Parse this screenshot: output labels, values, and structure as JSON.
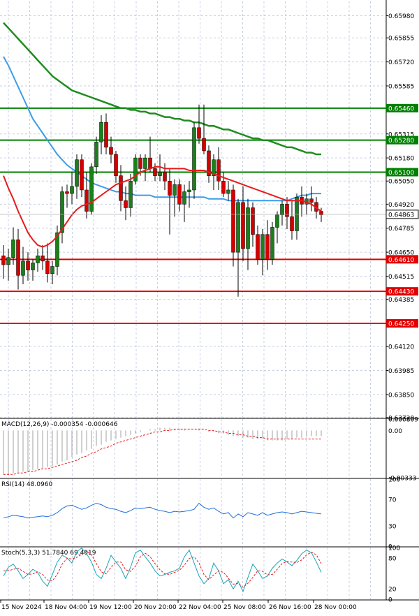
{
  "chart_data": {
    "type": "candlestick",
    "price_axis": {
      "ticks": [
        "0.65980",
        "0.65855",
        "0.65720",
        "0.65585",
        "0.65315",
        "0.65180",
        "0.65050",
        "0.64920",
        "0.64785",
        "0.64650",
        "0.64515",
        "0.64385",
        "0.64120",
        "0.63985",
        "0.63850",
        "0.63720"
      ],
      "ylim": [
        0.6372,
        0.6606
      ],
      "grid": true,
      "current_price": "0.64863"
    },
    "levels": [
      {
        "label": "0.65460",
        "value": 0.6546,
        "color": "#008000"
      },
      {
        "label": "0.65280",
        "value": 0.6528,
        "color": "#008000"
      },
      {
        "label": "0.65100",
        "value": 0.651,
        "color": "#008000"
      },
      {
        "label": "0.64610",
        "value": 0.6461,
        "color": "#e00000"
      },
      {
        "label": "0.64430",
        "value": 0.6443,
        "color": "#e00000"
      },
      {
        "label": "0.64250",
        "value": 0.6425,
        "color": "#e00000"
      }
    ],
    "time_axis": [
      "15 Nov 2024",
      "18 Nov 04:00",
      "19 Nov 12:00",
      "20 Nov 20:00",
      "22 Nov 04:00",
      "25 Nov 08:00",
      "26 Nov 16:00",
      "28 Nov 00:00"
    ],
    "candles": [
      [
        0.6463,
        0.6469,
        0.645,
        0.6458
      ],
      [
        0.6458,
        0.6467,
        0.6449,
        0.6462
      ],
      [
        0.6462,
        0.6479,
        0.6458,
        0.6472
      ],
      [
        0.6472,
        0.6478,
        0.6444,
        0.6452
      ],
      [
        0.6452,
        0.6468,
        0.6447,
        0.646
      ],
      [
        0.646,
        0.6465,
        0.6449,
        0.6455
      ],
      [
        0.6455,
        0.6461,
        0.6449,
        0.6459
      ],
      [
        0.6459,
        0.6467,
        0.6454,
        0.6463
      ],
      [
        0.6463,
        0.6469,
        0.6455,
        0.646
      ],
      [
        0.646,
        0.647,
        0.6448,
        0.6453
      ],
      [
        0.6453,
        0.646,
        0.6447,
        0.6457
      ],
      [
        0.6457,
        0.648,
        0.6452,
        0.6476
      ],
      [
        0.6476,
        0.6502,
        0.647,
        0.6499
      ],
      [
        0.6499,
        0.6503,
        0.649,
        0.6498
      ],
      [
        0.6498,
        0.651,
        0.6492,
        0.6502
      ],
      [
        0.6502,
        0.652,
        0.6495,
        0.6517
      ],
      [
        0.6517,
        0.652,
        0.6496,
        0.65
      ],
      [
        0.65,
        0.651,
        0.6484,
        0.6488
      ],
      [
        0.6488,
        0.6515,
        0.6486,
        0.6513
      ],
      [
        0.6513,
        0.653,
        0.6509,
        0.6527
      ],
      [
        0.6527,
        0.6542,
        0.652,
        0.6538
      ],
      [
        0.6538,
        0.6543,
        0.652,
        0.6524
      ],
      [
        0.6524,
        0.653,
        0.6515,
        0.652
      ],
      [
        0.652,
        0.6522,
        0.6504,
        0.6508
      ],
      [
        0.6508,
        0.6514,
        0.6488,
        0.6494
      ],
      [
        0.6494,
        0.6502,
        0.6483,
        0.649
      ],
      [
        0.649,
        0.6509,
        0.6485,
        0.6505
      ],
      [
        0.6505,
        0.652,
        0.6503,
        0.6518
      ],
      [
        0.6518,
        0.652,
        0.6508,
        0.6512
      ],
      [
        0.6512,
        0.652,
        0.6505,
        0.6518
      ],
      [
        0.6518,
        0.653,
        0.651,
        0.6512
      ],
      [
        0.6512,
        0.6515,
        0.6505,
        0.6508
      ],
      [
        0.6508,
        0.652,
        0.6505,
        0.651
      ],
      [
        0.651,
        0.6515,
        0.65,
        0.6505
      ],
      [
        0.6505,
        0.6512,
        0.6475,
        0.6497
      ],
      [
        0.6497,
        0.6506,
        0.6485,
        0.6503
      ],
      [
        0.6503,
        0.6506,
        0.6488,
        0.6492
      ],
      [
        0.6492,
        0.6503,
        0.6482,
        0.6499
      ],
      [
        0.6499,
        0.6505,
        0.649,
        0.65
      ],
      [
        0.65,
        0.6538,
        0.6495,
        0.6535
      ],
      [
        0.6535,
        0.6548,
        0.6526,
        0.6529
      ],
      [
        0.6529,
        0.6548,
        0.652,
        0.6522
      ],
      [
        0.6522,
        0.6525,
        0.6504,
        0.6508
      ],
      [
        0.6508,
        0.652,
        0.65,
        0.6517
      ],
      [
        0.6517,
        0.6524,
        0.65,
        0.6505
      ],
      [
        0.6505,
        0.651,
        0.6496,
        0.6498
      ],
      [
        0.6498,
        0.6505,
        0.6494,
        0.65
      ],
      [
        0.65,
        0.6503,
        0.6457,
        0.6465
      ],
      [
        0.6465,
        0.6495,
        0.644,
        0.6493
      ],
      [
        0.6493,
        0.6502,
        0.646,
        0.6467
      ],
      [
        0.6467,
        0.6495,
        0.6455,
        0.649
      ],
      [
        0.649,
        0.6493,
        0.6468,
        0.6475
      ],
      [
        0.6475,
        0.648,
        0.6458,
        0.6461
      ],
      [
        0.6461,
        0.6478,
        0.6452,
        0.6475
      ],
      [
        0.6475,
        0.6483,
        0.6455,
        0.6461
      ],
      [
        0.6461,
        0.6482,
        0.6458,
        0.6479
      ],
      [
        0.6479,
        0.6488,
        0.647,
        0.6486
      ],
      [
        0.6486,
        0.6494,
        0.648,
        0.6492
      ],
      [
        0.6492,
        0.6496,
        0.6478,
        0.6485
      ],
      [
        0.6485,
        0.6494,
        0.6472,
        0.6477
      ],
      [
        0.6477,
        0.6498,
        0.6472,
        0.6496
      ],
      [
        0.6496,
        0.6502,
        0.6485,
        0.6492
      ],
      [
        0.6492,
        0.6498,
        0.6486,
        0.6495
      ],
      [
        0.6495,
        0.6502,
        0.6488,
        0.6493
      ],
      [
        0.6493,
        0.6496,
        0.6484,
        0.6488
      ],
      [
        0.6488,
        0.649,
        0.6482,
        0.6486
      ]
    ],
    "ma_fast": [
      0.6508,
      0.6501,
      0.6495,
      0.6488,
      0.6482,
      0.6476,
      0.6472,
      0.6469,
      0.6468,
      0.6469,
      0.6471,
      0.6474,
      0.6478,
      0.6482,
      0.6486,
      0.6489,
      0.6491,
      0.6492,
      0.6493,
      0.6495,
      0.6497,
      0.6499,
      0.6501,
      0.6503,
      0.6504,
      0.6505,
      0.6506,
      0.6508,
      0.651,
      0.6511,
      0.6512,
      0.6513,
      0.6513,
      0.6512,
      0.6512,
      0.6512,
      0.6512,
      0.6512,
      0.6511,
      0.6511,
      0.6511,
      0.6511,
      0.651,
      0.6509,
      0.6508,
      0.6507,
      0.6506,
      0.6505,
      0.6504,
      0.6503,
      0.6502,
      0.6501,
      0.65,
      0.6499,
      0.6498,
      0.6497,
      0.6496,
      0.6495,
      0.6494,
      0.6494,
      0.6494,
      0.6494,
      0.6493,
      0.6492,
      0.649,
      0.6488
    ],
    "ma_mid": [
      0.6575,
      0.657,
      0.6564,
      0.6558,
      0.6552,
      0.6546,
      0.654,
      0.6536,
      0.6532,
      0.6528,
      0.6524,
      0.652,
      0.6517,
      0.6514,
      0.6512,
      0.651,
      0.6508,
      0.6506,
      0.6504,
      0.6503,
      0.6502,
      0.6501,
      0.65,
      0.6499,
      0.6499,
      0.6498,
      0.6498,
      0.6497,
      0.6497,
      0.6497,
      0.6497,
      0.6496,
      0.6496,
      0.6496,
      0.6496,
      0.6496,
      0.6496,
      0.6496,
      0.6496,
      0.6496,
      0.6496,
      0.6496,
      0.6495,
      0.6495,
      0.6495,
      0.6495,
      0.6494,
      0.6494,
      0.6494,
      0.6494,
      0.6494,
      0.6494,
      0.6494,
      0.6494,
      0.6494,
      0.6494,
      0.6494,
      0.6494,
      0.6494,
      0.6495,
      0.6496,
      0.6497,
      0.6497,
      0.6498,
      0.6498,
      0.6498
    ],
    "ma_slow": [
      0.6594,
      0.6591,
      0.6588,
      0.6585,
      0.6582,
      0.6579,
      0.6576,
      0.6573,
      0.657,
      0.6567,
      0.6564,
      0.6562,
      0.656,
      0.6558,
      0.6556,
      0.6555,
      0.6554,
      0.6553,
      0.6552,
      0.6551,
      0.655,
      0.6549,
      0.6548,
      0.6547,
      0.6546,
      0.6546,
      0.6545,
      0.6545,
      0.6544,
      0.6544,
      0.6543,
      0.6543,
      0.6542,
      0.6541,
      0.6541,
      0.654,
      0.654,
      0.6539,
      0.6539,
      0.6538,
      0.6538,
      0.6537,
      0.6536,
      0.6536,
      0.6535,
      0.6534,
      0.6534,
      0.6533,
      0.6532,
      0.6531,
      0.653,
      0.6529,
      0.6529,
      0.6528,
      0.6528,
      0.6527,
      0.6526,
      0.6525,
      0.6524,
      0.6524,
      0.6523,
      0.6522,
      0.6521,
      0.6521,
      0.652,
      0.652
    ],
    "macd": {
      "label": "MACD(12,26,9) -0.000354 -0.000646",
      "ticks": [
        "0.000809",
        "0.00",
        "-0.00333"
      ],
      "ylim": [
        -0.00333,
        0.000809
      ],
      "histogram": [
        -0.0031,
        -0.0031,
        -0.003,
        -0.003,
        -0.0029,
        -0.0029,
        -0.0028,
        -0.0027,
        -0.0027,
        -0.0026,
        -0.0025,
        -0.0024,
        -0.0022,
        -0.0021,
        -0.0019,
        -0.0017,
        -0.0016,
        -0.0014,
        -0.0013,
        -0.0011,
        -0.001,
        -0.0008,
        -0.0007,
        -0.0006,
        -0.0005,
        -0.0004,
        -0.0003,
        -0.0002,
        -0.0001,
        0.0,
        0.0001,
        0.0001,
        0.0002,
        0.0002,
        0.0002,
        0.0001,
        0.0001,
        0.0001,
        0.0,
        0.0,
        0.0001,
        0.0,
        -0.0001,
        -0.0001,
        -0.0002,
        -0.0002,
        -0.0003,
        -0.0004,
        -0.0004,
        -0.0005,
        -0.0005,
        -0.0006,
        -0.0006,
        -0.0006,
        -0.0007,
        -0.0007,
        -0.0007,
        -0.0007,
        -0.0006,
        -0.0006,
        -0.0005,
        -0.0005,
        -0.0004,
        -0.0004,
        -0.0004,
        -0.0004
      ],
      "signal": [
        -0.0031,
        -0.0031,
        -0.0031,
        -0.003,
        -0.003,
        -0.0029,
        -0.0029,
        -0.0028,
        -0.0027,
        -0.0027,
        -0.0026,
        -0.0025,
        -0.0024,
        -0.0023,
        -0.0022,
        -0.0021,
        -0.0019,
        -0.0018,
        -0.0016,
        -0.0015,
        -0.0013,
        -0.0012,
        -0.0011,
        -0.0009,
        -0.0008,
        -0.0007,
        -0.0006,
        -0.0005,
        -0.0004,
        -0.0003,
        -0.0002,
        -0.0001,
        -0.0001,
        0.0,
        0.0,
        0.0001,
        0.0001,
        0.0001,
        0.0001,
        0.0001,
        0.0001,
        0.0001,
        0.0,
        0.0,
        -0.0001,
        -0.0001,
        -0.0002,
        -0.0002,
        -0.0003,
        -0.0003,
        -0.0004,
        -0.0004,
        -0.0005,
        -0.0005,
        -0.0006,
        -0.0006,
        -0.0006,
        -0.0006,
        -0.0006,
        -0.0006,
        -0.0006,
        -0.0006,
        -0.0006,
        -0.0006,
        -0.0006,
        -0.0006
      ]
    },
    "rsi": {
      "label": "RSI(14) 48.0960",
      "ticks": [
        "100",
        "70",
        "30",
        "0"
      ],
      "ylim": [
        0,
        100
      ],
      "values": [
        42,
        44,
        46,
        45,
        44,
        42,
        43,
        44,
        45,
        44,
        46,
        50,
        56,
        60,
        61,
        58,
        55,
        57,
        61,
        64,
        62,
        58,
        56,
        55,
        52,
        50,
        53,
        57,
        56,
        57,
        58,
        55,
        53,
        52,
        50,
        52,
        51,
        52,
        53,
        55,
        64,
        58,
        55,
        57,
        52,
        48,
        50,
        42,
        48,
        44,
        50,
        48,
        46,
        50,
        46,
        48,
        50,
        51,
        50,
        48,
        50,
        52,
        51,
        50,
        49,
        48
      ]
    },
    "stoch": {
      "label": "Stoch(5,3,3) 51.7840 69.4019",
      "ticks": [
        "100",
        "80",
        "20",
        "0"
      ],
      "ylim": [
        0,
        100
      ],
      "k": [
        45,
        62,
        68,
        55,
        40,
        48,
        58,
        52,
        35,
        25,
        48,
        72,
        85,
        80,
        70,
        92,
        99,
        88,
        72,
        48,
        40,
        60,
        85,
        72,
        60,
        40,
        62,
        90,
        95,
        82,
        70,
        55,
        45,
        48,
        52,
        55,
        60,
        82,
        95,
        70,
        45,
        30,
        40,
        70,
        55,
        30,
        38,
        20,
        35,
        15,
        42,
        68,
        55,
        40,
        45,
        60,
        70,
        78,
        72,
        65,
        75,
        88,
        95,
        90,
        72,
        52
      ],
      "d": [
        55,
        55,
        58,
        60,
        54,
        48,
        49,
        53,
        48,
        37,
        36,
        48,
        68,
        79,
        78,
        81,
        87,
        93,
        86,
        69,
        53,
        49,
        62,
        72,
        72,
        57,
        54,
        64,
        82,
        89,
        82,
        69,
        57,
        49,
        48,
        52,
        56,
        66,
        79,
        82,
        70,
        48,
        38,
        47,
        55,
        52,
        41,
        29,
        31,
        23,
        31,
        42,
        55,
        54,
        47,
        48,
        58,
        69,
        73,
        72,
        71,
        76,
        86,
        91,
        86,
        69
      ]
    }
  }
}
